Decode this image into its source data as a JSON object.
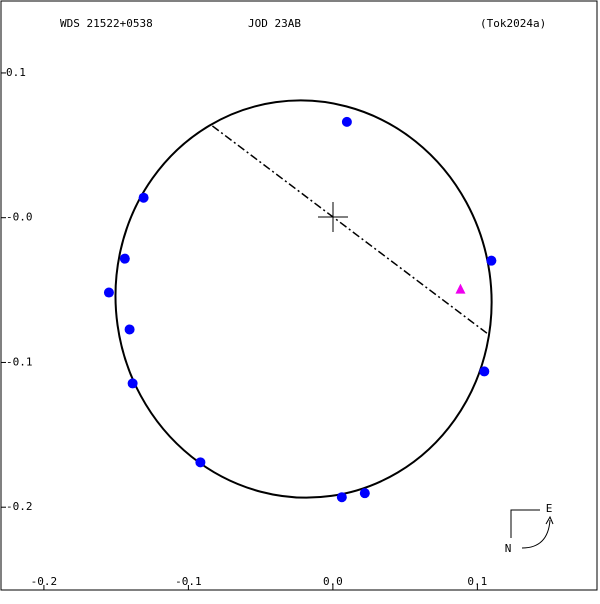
{
  "chart_data": {
    "type": "scatter",
    "header": [
      "WDS 21522+0538",
      "JOD  23AB",
      "(Tok2024a)"
    ],
    "x": [
      0.0097,
      -0.131,
      -0.144,
      -0.155,
      -0.1407,
      -0.1386,
      -0.0917,
      0.0062,
      0.0221,
      0.1048,
      0.1097
    ],
    "values": [
      0.0662,
      0.0138,
      -0.0283,
      -0.0517,
      -0.0772,
      -0.1145,
      -0.169,
      -0.1931,
      -0.1903,
      -0.1062,
      -0.0297
    ],
    "color": "#0000ff",
    "extra_point": {
      "x": 0.0883,
      "y": -0.0497,
      "color": "#ee00ee"
    },
    "orbit": {
      "center": [
        -0.0203,
        -0.0562
      ],
      "semi_axes": [
        0.13,
        0.1376
      ],
      "angle": -8
    },
    "line_of_nodes": {
      "x": [
        -0.0834,
        0.1069
      ],
      "y": [
        0.0634,
        -0.08
      ]
    },
    "xlim": [
      -0.2297,
      0.1828
    ],
    "ylim": [
      -0.2572,
      0.1497
    ],
    "xticks": [
      -0.2,
      -0.1,
      {
        "value": 0,
        "label": "0.0"
      },
      0.1
    ],
    "yticks": [
      0.1,
      {
        "value": 0,
        "label": "-0.0"
      },
      -0.1,
      -0.2
    ],
    "compass": [
      "E",
      "N"
    ]
  }
}
